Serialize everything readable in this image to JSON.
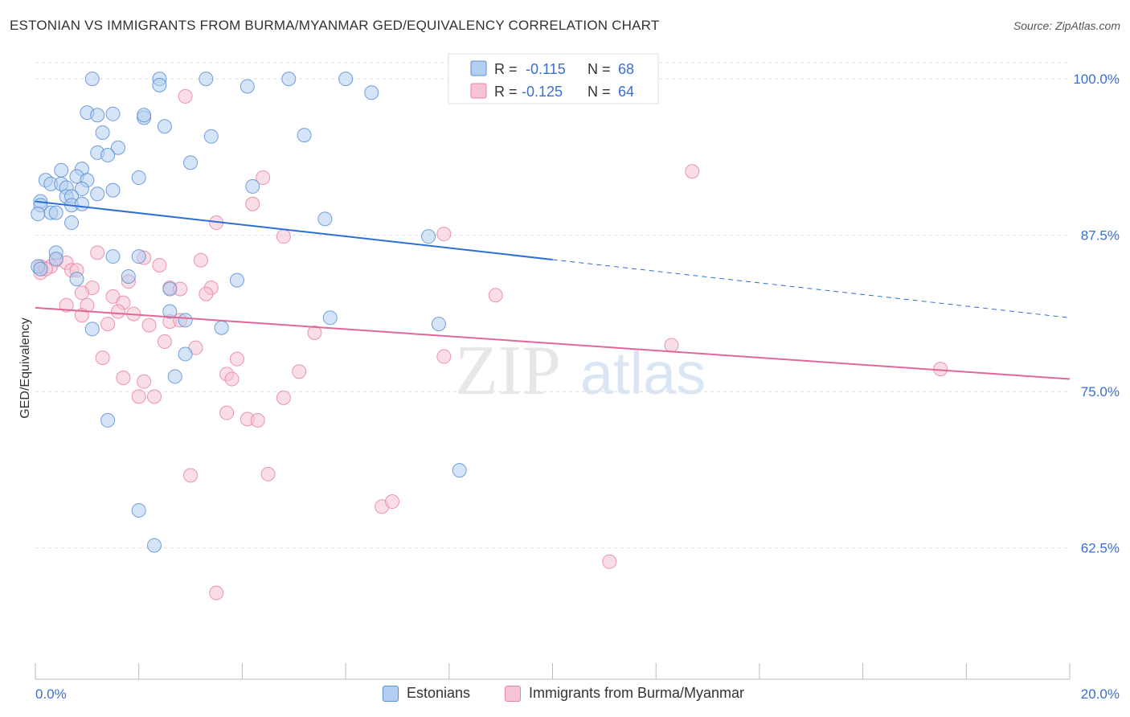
{
  "header": {
    "title": "ESTONIAN VS IMMIGRANTS FROM BURMA/MYANMAR GED/EQUIVALENCY CORRELATION CHART",
    "source": "Source: ZipAtlas.com"
  },
  "watermark": {
    "zip": "ZIP",
    "atlas": "atlas"
  },
  "chart_data": {
    "type": "scatter",
    "ylabel": "GED/Equivalency",
    "xlim": [
      0,
      20
    ],
    "ylim": [
      52,
      102
    ],
    "x_tick_labels": [
      "0.0%",
      "20.0%"
    ],
    "y_ticks": [
      {
        "value": 100,
        "label": "100.0%"
      },
      {
        "value": 87.5,
        "label": "87.5%"
      },
      {
        "value": 75,
        "label": "75.0%"
      },
      {
        "value": 62.5,
        "label": "62.5%"
      }
    ],
    "grid": true,
    "legend_position": "top-center",
    "colors": {
      "blue_fill": "#b3cef0",
      "blue_stroke": "#5b8fd6",
      "blue_line": "#2e6fd4",
      "pink_fill": "#f6c3d3",
      "pink_stroke": "#e8849f",
      "pink_line": "#e0679a",
      "value_text": "#3a6fd0",
      "grid": "#dddddd"
    },
    "series": [
      {
        "name": "Estonians",
        "stats": {
          "r_label": "R =",
          "r": "-0.115",
          "n_label": "N =",
          "n": "68"
        },
        "trend": {
          "x0": 0,
          "y0": 90.2,
          "x1": 20,
          "y1": 80.9,
          "solid_until": 10
        },
        "points": [
          [
            1.1,
            100
          ],
          [
            2.4,
            100
          ],
          [
            3.3,
            100
          ],
          [
            4.9,
            100
          ],
          [
            6.0,
            100
          ],
          [
            2.4,
            99.5
          ],
          [
            4.1,
            99.4
          ],
          [
            6.5,
            98.9
          ],
          [
            1.0,
            97.3
          ],
          [
            1.2,
            97.1
          ],
          [
            1.5,
            97.2
          ],
          [
            2.1,
            96.9
          ],
          [
            2.1,
            97.1
          ],
          [
            2.5,
            96.2
          ],
          [
            1.3,
            95.7
          ],
          [
            3.4,
            95.4
          ],
          [
            5.2,
            95.5
          ],
          [
            1.6,
            94.5
          ],
          [
            1.2,
            94.1
          ],
          [
            1.4,
            93.9
          ],
          [
            3.0,
            93.3
          ],
          [
            0.5,
            92.7
          ],
          [
            0.9,
            92.8
          ],
          [
            2.0,
            92.1
          ],
          [
            0.2,
            91.9
          ],
          [
            0.3,
            91.6
          ],
          [
            0.5,
            91.6
          ],
          [
            0.8,
            92.2
          ],
          [
            1.0,
            91.9
          ],
          [
            1.5,
            91.1
          ],
          [
            4.2,
            91.4
          ],
          [
            0.6,
            91.3
          ],
          [
            0.9,
            91.2
          ],
          [
            1.2,
            90.8
          ],
          [
            0.6,
            90.6
          ],
          [
            0.7,
            90.6
          ],
          [
            0.1,
            90.2
          ],
          [
            0.1,
            89.9
          ],
          [
            0.3,
            89.3
          ],
          [
            0.4,
            89.3
          ],
          [
            0.7,
            89.9
          ],
          [
            0.9,
            90.0
          ],
          [
            0.7,
            88.5
          ],
          [
            5.6,
            88.8
          ],
          [
            7.6,
            87.4
          ],
          [
            0.4,
            86.1
          ],
          [
            0.4,
            85.6
          ],
          [
            1.5,
            85.8
          ],
          [
            2.0,
            85.8
          ],
          [
            0.8,
            84.0
          ],
          [
            1.8,
            84.2
          ],
          [
            3.9,
            83.9
          ],
          [
            2.6,
            83.2
          ],
          [
            2.6,
            81.4
          ],
          [
            2.9,
            80.7
          ],
          [
            5.7,
            80.9
          ],
          [
            7.8,
            80.4
          ],
          [
            1.1,
            80.0
          ],
          [
            3.6,
            80.1
          ],
          [
            2.9,
            78.0
          ],
          [
            2.7,
            76.2
          ],
          [
            1.4,
            72.7
          ],
          [
            8.2,
            68.7
          ],
          [
            2.0,
            65.5
          ],
          [
            2.3,
            62.7
          ],
          [
            0.05,
            85.0
          ],
          [
            0.05,
            89.2
          ],
          [
            0.1,
            84.8
          ]
        ]
      },
      {
        "name": "Immigrants from Burma/Myanmar",
        "stats": {
          "r_label": "R =",
          "r": "-0.125",
          "n_label": "N =",
          "n": "64"
        },
        "trend": {
          "x0": 0,
          "y0": 81.7,
          "x1": 20,
          "y1": 76.0
        },
        "points": [
          [
            9.9,
            100
          ],
          [
            2.9,
            98.6
          ],
          [
            12.7,
            92.6
          ],
          [
            4.4,
            92.1
          ],
          [
            4.2,
            90.0
          ],
          [
            7.9,
            87.6
          ],
          [
            3.5,
            88.5
          ],
          [
            4.8,
            87.4
          ],
          [
            1.2,
            86.1
          ],
          [
            2.1,
            85.7
          ],
          [
            3.2,
            85.5
          ],
          [
            0.4,
            85.5
          ],
          [
            0.3,
            85.0
          ],
          [
            0.6,
            85.3
          ],
          [
            0.7,
            84.7
          ],
          [
            0.8,
            84.7
          ],
          [
            2.4,
            85.1
          ],
          [
            1.8,
            83.8
          ],
          [
            2.6,
            83.3
          ],
          [
            2.8,
            83.2
          ],
          [
            3.4,
            83.3
          ],
          [
            1.1,
            83.3
          ],
          [
            0.9,
            82.9
          ],
          [
            1.5,
            82.6
          ],
          [
            3.3,
            82.8
          ],
          [
            8.9,
            82.7
          ],
          [
            0.6,
            81.9
          ],
          [
            1.0,
            81.9
          ],
          [
            1.7,
            82.1
          ],
          [
            1.6,
            81.4
          ],
          [
            1.9,
            81.2
          ],
          [
            0.9,
            81.1
          ],
          [
            2.6,
            80.6
          ],
          [
            2.8,
            80.7
          ],
          [
            1.4,
            80.4
          ],
          [
            2.2,
            80.3
          ],
          [
            5.4,
            79.7
          ],
          [
            2.5,
            79.0
          ],
          [
            3.1,
            78.5
          ],
          [
            12.3,
            78.7
          ],
          [
            7.9,
            77.8
          ],
          [
            1.3,
            77.7
          ],
          [
            3.9,
            77.6
          ],
          [
            17.5,
            76.8
          ],
          [
            5.1,
            76.6
          ],
          [
            3.7,
            76.4
          ],
          [
            3.8,
            76.0
          ],
          [
            1.7,
            76.1
          ],
          [
            2.1,
            75.8
          ],
          [
            2.0,
            74.6
          ],
          [
            2.3,
            74.6
          ],
          [
            4.8,
            74.5
          ],
          [
            3.7,
            73.3
          ],
          [
            4.1,
            72.8
          ],
          [
            4.3,
            72.7
          ],
          [
            3.0,
            68.3
          ],
          [
            4.5,
            68.4
          ],
          [
            6.7,
            65.8
          ],
          [
            6.9,
            66.2
          ],
          [
            11.1,
            61.4
          ],
          [
            3.5,
            58.9
          ],
          [
            0.1,
            85.0
          ],
          [
            0.1,
            84.5
          ],
          [
            0.2,
            84.8
          ]
        ]
      }
    ]
  }
}
